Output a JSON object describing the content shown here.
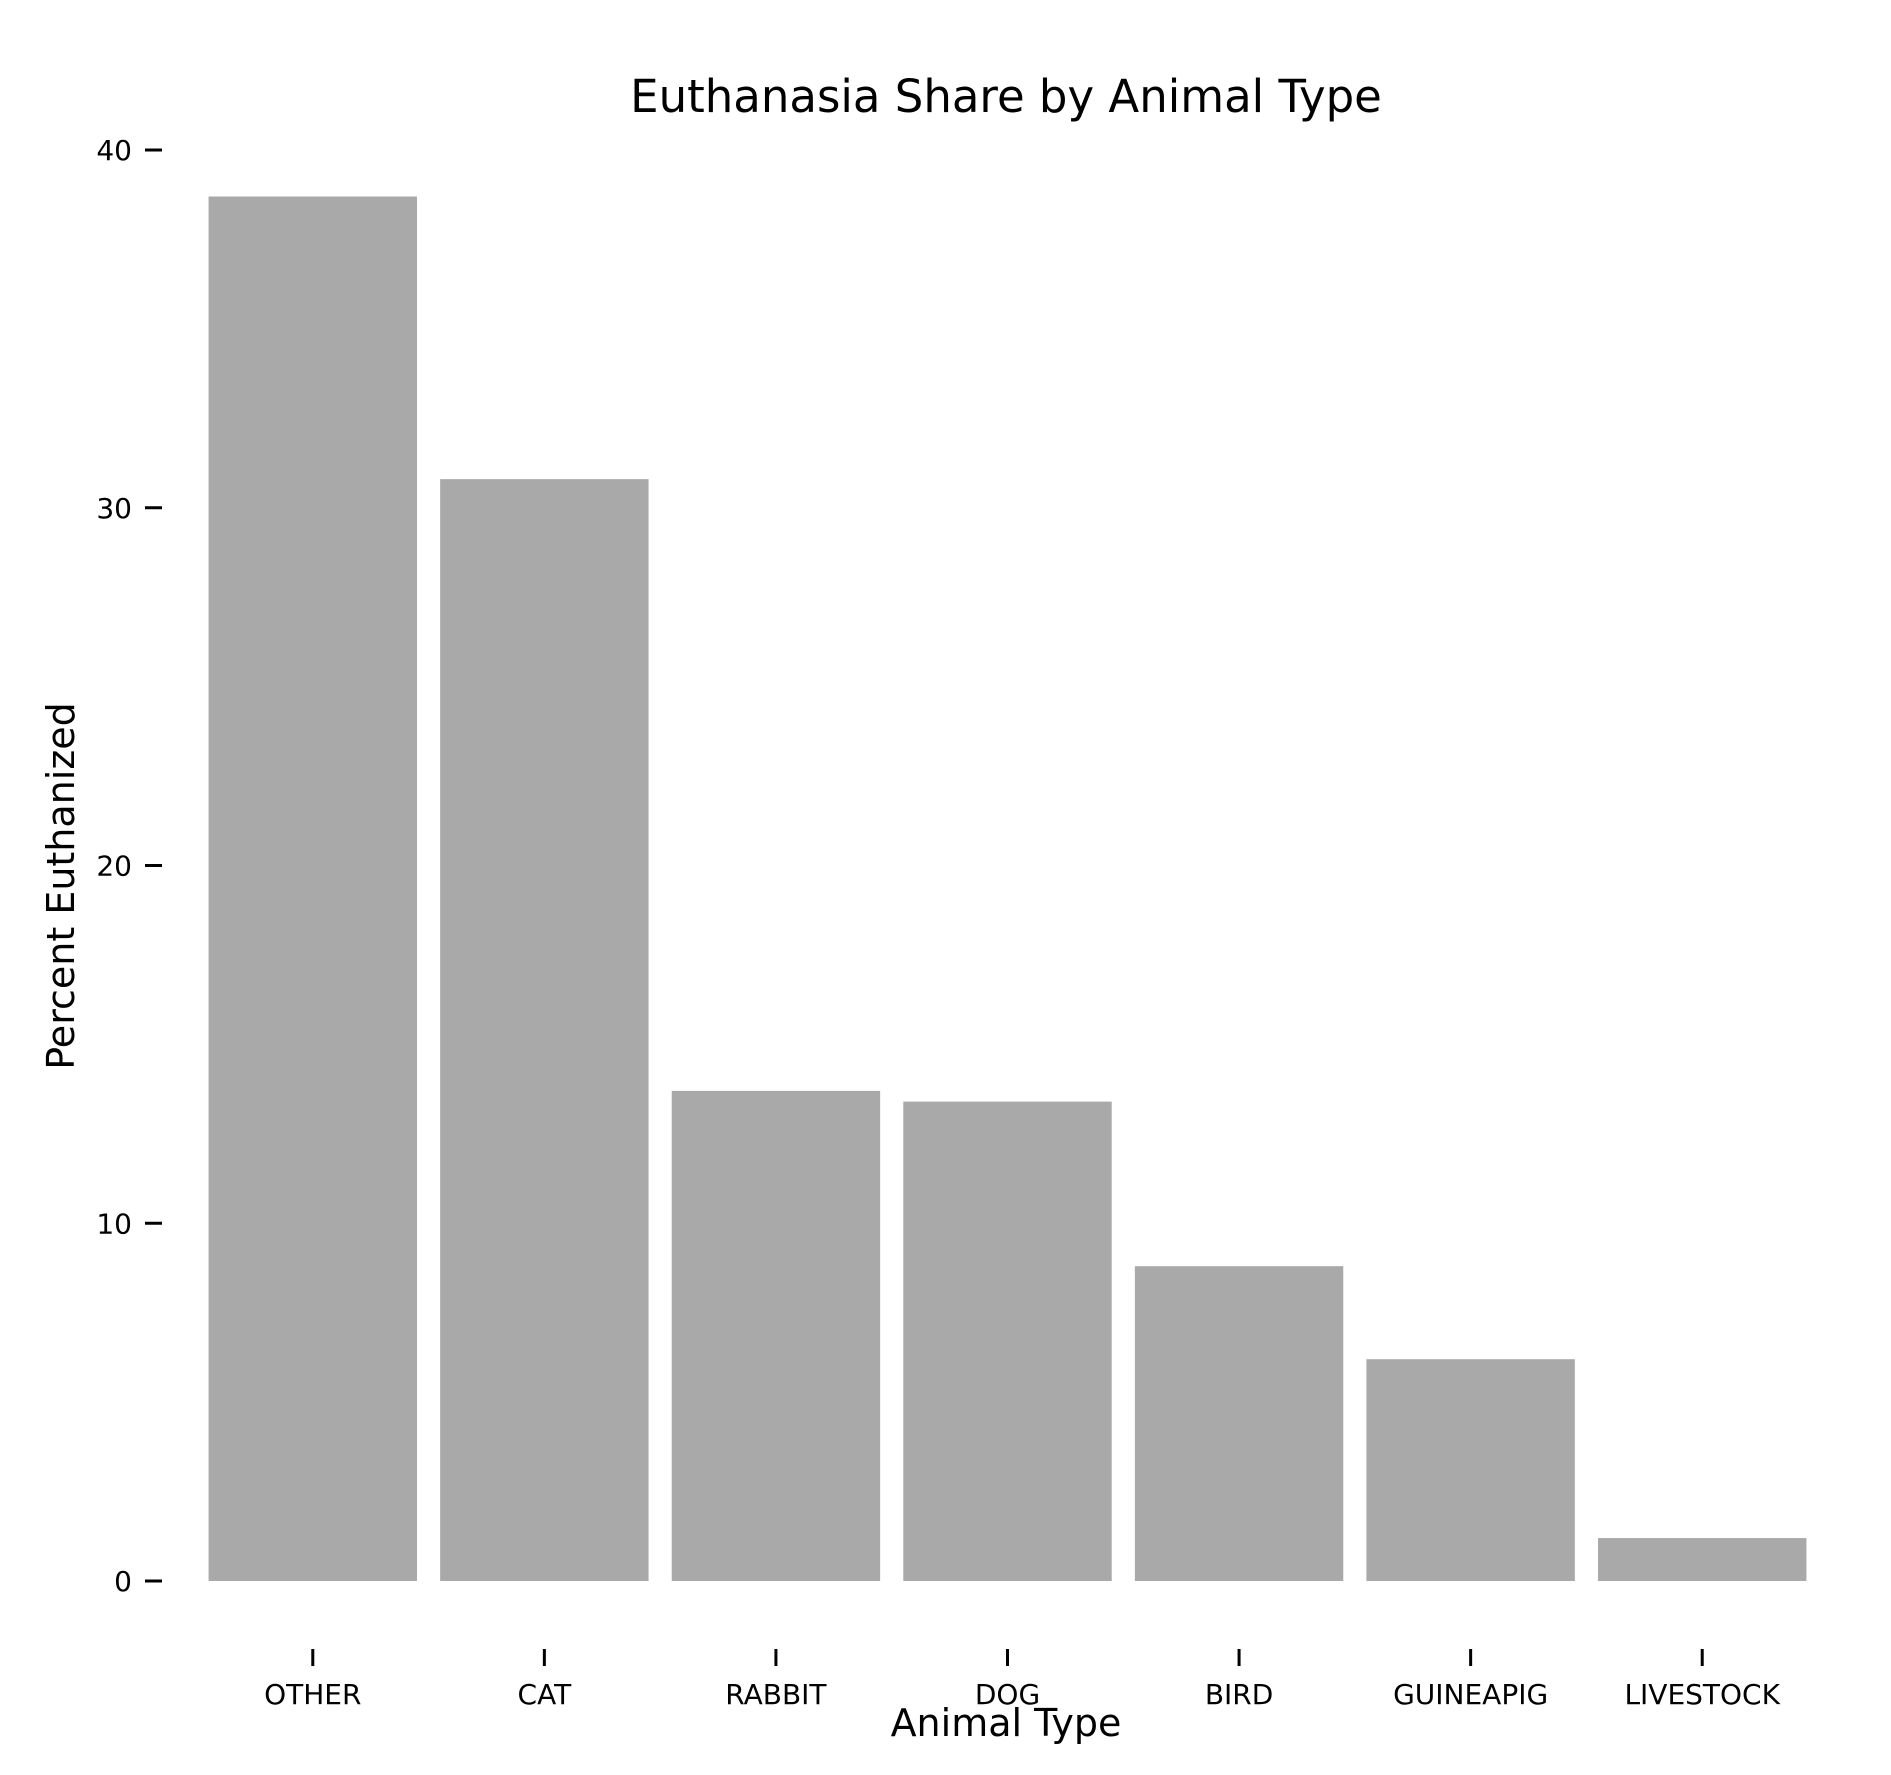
{
  "chart_data": {
    "type": "bar",
    "title": "Euthanasia Share by Animal Type",
    "xlabel": "Animal Type",
    "ylabel": "Percent Euthanized",
    "categories": [
      "OTHER",
      "CAT",
      "RABBIT",
      "DOG",
      "BIRD",
      "GUINEAPIG",
      "LIVESTOCK"
    ],
    "values": [
      38.7,
      30.8,
      13.7,
      13.4,
      8.8,
      6.2,
      1.2
    ],
    "ylim": [
      0,
      40
    ],
    "yticks": [
      0,
      10,
      20,
      30,
      40
    ],
    "grid": false,
    "legend": "none",
    "bar_color": "#a9a9a9"
  }
}
